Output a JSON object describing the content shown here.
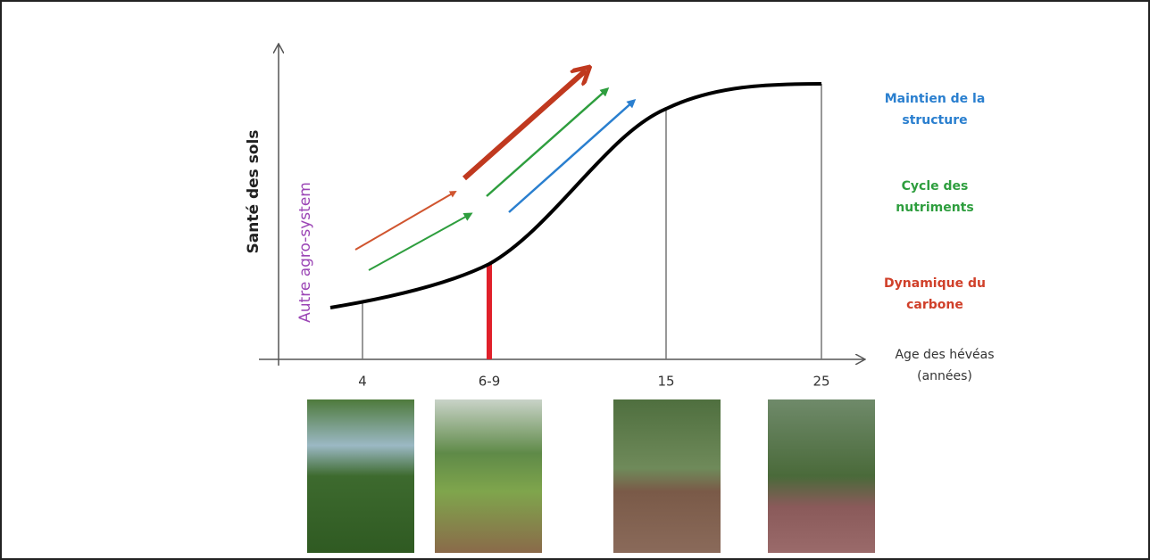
{
  "y_axis_label": "Santé des sols",
  "other_label": "Autre agro-system",
  "x_axis_label": [
    "Age des hévéas",
    "(années)"
  ],
  "ticks": [
    "4",
    "6-9",
    "15",
    "25"
  ],
  "legend": [
    {
      "lines": [
        "Maintien de la",
        "structure"
      ]
    },
    {
      "lines": [
        "Cycle des",
        "nutriments"
      ]
    },
    {
      "lines": [
        "Dynamique du",
        "carbone"
      ]
    }
  ]
}
